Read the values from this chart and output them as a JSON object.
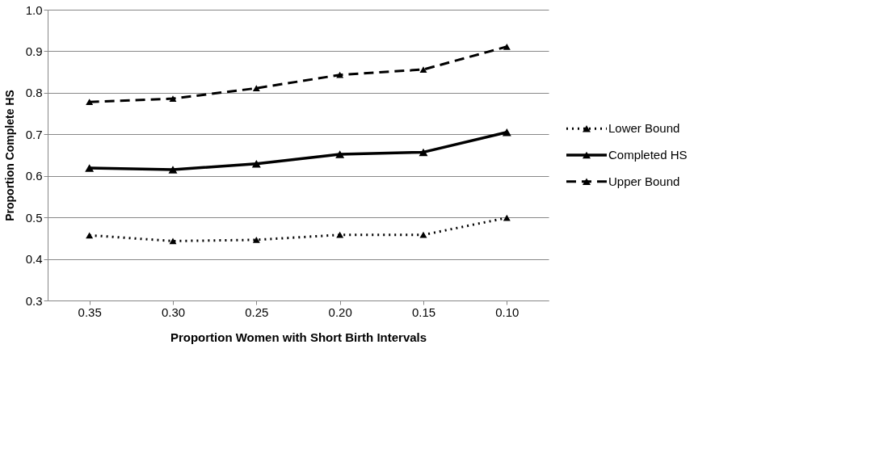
{
  "chart_data": {
    "type": "line",
    "xlabel": "Proportion Women with Short Birth Intervals",
    "ylabel": "Proportion Complete HS",
    "categories": [
      "0.35",
      "0.30",
      "0.25",
      "0.20",
      "0.15",
      "0.10"
    ],
    "series": [
      {
        "name": "Lower Bound",
        "color": "#000000",
        "line_style": "dotted",
        "values": [
          0.457,
          0.443,
          0.446,
          0.458,
          0.458,
          0.499
        ]
      },
      {
        "name": "Completed HS",
        "color": "#000000",
        "line_style": "solid",
        "values": [
          0.619,
          0.615,
          0.629,
          0.652,
          0.657,
          0.705
        ]
      },
      {
        "name": "Upper Bound",
        "color": "#000000",
        "line_style": "dashed",
        "values": [
          0.778,
          0.786,
          0.811,
          0.843,
          0.856,
          0.911
        ]
      }
    ],
    "ylim": [
      0.3,
      1.0
    ],
    "yticks": [
      0.3,
      0.4,
      0.5,
      0.6,
      0.7,
      0.8,
      0.9,
      {
        "value": 1.0,
        "label": "1.0"
      }
    ],
    "grid": "y",
    "legend": "right",
    "marker": "triangle"
  }
}
